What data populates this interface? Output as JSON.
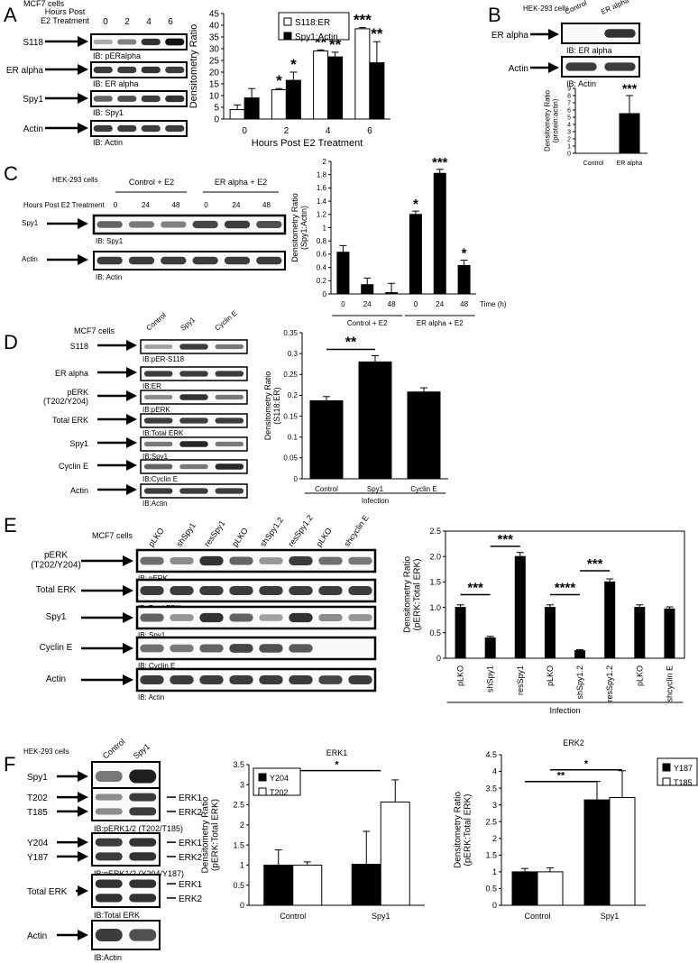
{
  "panels": {
    "A": {
      "letter": "A",
      "cells": "MCF7 cells",
      "header": [
        "Hours Post",
        "E2 Treatment"
      ],
      "lane_labels": [
        "0",
        "2",
        "4",
        "6"
      ],
      "blots": [
        {
          "label": "S118",
          "ib": "IB: pERalpha",
          "intensity": [
            0.25,
            0.45,
            0.85,
            1.0
          ]
        },
        {
          "label": "ER alpha",
          "ib": "IB: ER alpha",
          "intensity": [
            0.8,
            0.8,
            0.85,
            0.8
          ]
        },
        {
          "label": "Spy1",
          "ib": "IB: Spy1",
          "intensity": [
            0.6,
            0.7,
            0.8,
            0.85
          ]
        },
        {
          "label": "Actin",
          "ib": "IB: Actin",
          "intensity": [
            0.8,
            0.8,
            0.8,
            0.8
          ]
        }
      ]
    },
    "B": {
      "letter": "B",
      "cells": "HEK-293 cells",
      "lane_labels": [
        "Control",
        "ER alpha"
      ],
      "blots": [
        {
          "label": "ER alpha",
          "ib": "IB: ER alpha",
          "intensity": [
            0.0,
            0.85
          ]
        },
        {
          "label": "Actin",
          "ib": "IB: Actin",
          "intensity": [
            0.8,
            0.8
          ]
        }
      ]
    },
    "C": {
      "letter": "C",
      "cells": "HEK-293 cells",
      "groups": [
        "Control + E2",
        "ER alpha + E2"
      ],
      "header": "Hours Post E2 Treatment",
      "lane_labels": [
        "0",
        "24",
        "48",
        "0",
        "24",
        "48"
      ],
      "blots": [
        {
          "label": "Spy1",
          "ib": "IB: Spy1",
          "intensity": [
            0.6,
            0.5,
            0.45,
            0.75,
            0.8,
            0.7
          ]
        },
        {
          "label": "Actin",
          "ib": "IB: Actin",
          "intensity": [
            0.8,
            0.8,
            0.8,
            0.8,
            0.8,
            0.8
          ]
        }
      ]
    },
    "D": {
      "letter": "D",
      "cells": "MCF7 cells",
      "lane_labels": [
        "Control",
        "Spy1",
        "Cyclin E"
      ],
      "blots": [
        {
          "label": "S118",
          "ib": "IB:pER-S118",
          "intensity": [
            0.3,
            0.8,
            0.5
          ]
        },
        {
          "label": "ER alpha",
          "ib": "IB:ER",
          "intensity": [
            0.8,
            0.8,
            0.8
          ]
        },
        {
          "label": "pERK\n(T202/Y204)",
          "ib": "IB:pERK",
          "intensity": [
            0.4,
            0.85,
            0.5
          ]
        },
        {
          "label": "Total ERK",
          "ib": "IB:Total ERK",
          "intensity": [
            0.8,
            0.8,
            0.8
          ]
        },
        {
          "label": "Spy1",
          "ib": "IB:Spy1",
          "intensity": [
            0.5,
            0.9,
            0.5
          ]
        },
        {
          "label": "Cyclin E",
          "ib": "IB:Cyclin E",
          "intensity": [
            0.6,
            0.5,
            0.9
          ]
        },
        {
          "label": "Actin",
          "ib": "IB:Actin",
          "intensity": [
            0.8,
            0.8,
            0.8
          ]
        }
      ]
    },
    "E": {
      "letter": "E",
      "cells": "MCF7 cells",
      "lane_labels": [
        "pLKO",
        "shSpy1",
        "resSpy1",
        "pLKO",
        "shSpy1.2",
        "resSpy1.2",
        "pLKO",
        "shcyclin E"
      ],
      "blots": [
        {
          "label": "pERK\n(T202/Y204)",
          "ib": "IB: pERK",
          "intensity": [
            0.55,
            0.4,
            0.85,
            0.6,
            0.35,
            0.8,
            0.55,
            0.5
          ]
        },
        {
          "label": "Total ERK",
          "ib": "IB: Total ERK",
          "intensity": [
            0.8,
            0.8,
            0.8,
            0.8,
            0.8,
            0.8,
            0.8,
            0.8
          ]
        },
        {
          "label": "Spy1",
          "ib": "IB: Spy1",
          "intensity": [
            0.6,
            0.35,
            0.85,
            0.6,
            0.3,
            0.85,
            0.4,
            0.35
          ]
        },
        {
          "label": "Cyclin E",
          "ib": "IB: Cyclin E",
          "intensity": [
            0.55,
            0.5,
            0.6,
            0.75,
            0.7,
            0.65,
            0.0,
            0.0
          ]
        },
        {
          "label": "Actin",
          "ib": "IB: Actin",
          "intensity": [
            0.8,
            0.8,
            0.8,
            0.8,
            0.8,
            0.8,
            0.75,
            0.8
          ]
        }
      ]
    },
    "F": {
      "letter": "F",
      "cells": "HEK-293 cells",
      "lane_labels": [
        "Control",
        "Spy1"
      ],
      "blots": [
        {
          "label": "Spy1",
          "ib": "IB:Spy1",
          "intensity": [
            0.5,
            0.95
          ],
          "bands": []
        },
        {
          "label": "T202|T185",
          "ib": "IB:pERK1/2 (T202/T185)",
          "intensity": [
            0.4,
            0.8
          ],
          "bands": [
            "ERK1",
            "ERK2"
          ]
        },
        {
          "label": "Y204|Y187",
          "ib": "IB:pERK1/2 (Y204/Y187)",
          "intensity": [
            0.8,
            0.85
          ],
          "bands": [
            "ERK1",
            "ERK2"
          ]
        },
        {
          "label": "Total ERK",
          "ib": "IB:Total ERK",
          "intensity": [
            0.85,
            0.85
          ],
          "bands": [
            "ERK1",
            "ERK2"
          ]
        },
        {
          "label": "Actin",
          "ib": "IB:Actin",
          "intensity": [
            0.8,
            0.7
          ],
          "bands": []
        }
      ]
    }
  },
  "chart_data": [
    {
      "id": "A",
      "type": "bar",
      "xlabel": "Hours Post E2 Treatment",
      "ylabel": "Densitometry Ratio",
      "categories": [
        "0",
        "2",
        "4",
        "6"
      ],
      "ylim": [
        0,
        45
      ],
      "yticks": [
        0,
        5,
        10,
        15,
        20,
        25,
        30,
        35,
        40,
        45
      ],
      "legend": "top-left",
      "series": [
        {
          "name": "S118:ER",
          "fill": "#ffffff",
          "values": [
            4,
            12.5,
            29,
            38.5
          ],
          "err": [
            2,
            0.5,
            0.5,
            0.5
          ]
        },
        {
          "name": "Spy1:Actin",
          "fill": "#000000",
          "values": [
            9,
            16.5,
            26.5,
            24
          ],
          "err": [
            4,
            3.5,
            2,
            9
          ]
        }
      ],
      "annotations": [
        {
          "cat": 1,
          "series": 0,
          "text": "*"
        },
        {
          "cat": 1,
          "series": 1,
          "text": "*"
        },
        {
          "cat": 2,
          "series": 0,
          "text": "**"
        },
        {
          "cat": 2,
          "series": 1,
          "text": "**"
        },
        {
          "cat": 3,
          "series": 0,
          "text": "***"
        },
        {
          "cat": 3,
          "series": 1,
          "text": "**"
        }
      ]
    },
    {
      "id": "B",
      "type": "bar",
      "ylabel": "Densitometry Ratio\n(protein:actin)",
      "categories": [
        "Control",
        "ER alpha"
      ],
      "ylim": [
        0,
        9
      ],
      "yticks": [
        0,
        1,
        2,
        3,
        4,
        5,
        6,
        7,
        8,
        9
      ],
      "series": [
        {
          "name": "",
          "fill": "#000000",
          "values": [
            0,
            5.5
          ],
          "err": [
            0,
            2.5
          ]
        }
      ],
      "annotations": [
        {
          "cat": 1,
          "series": 0,
          "text": "***"
        }
      ]
    },
    {
      "id": "C",
      "type": "bar",
      "ylabel": "Densitometry Ratio\n(Spy1:Actin)",
      "xunit": "Time (h)",
      "categories": [
        "0",
        "24",
        "48",
        "0",
        "24",
        "48"
      ],
      "groups": [
        {
          "label": "Control + E2",
          "from": 0,
          "to": 2
        },
        {
          "label": "ER alpha + E2",
          "from": 3,
          "to": 5
        }
      ],
      "ylim": [
        0,
        2
      ],
      "yticks": [
        0,
        0.2,
        0.4,
        0.6,
        0.8,
        1,
        1.2,
        1.4,
        1.6,
        1.8,
        2
      ],
      "series": [
        {
          "name": "",
          "fill": "#000000",
          "values": [
            0.63,
            0.14,
            0.02,
            1.2,
            1.82,
            0.43
          ],
          "err": [
            0.1,
            0.1,
            0.14,
            0.05,
            0.06,
            0.08
          ]
        }
      ],
      "annotations": [
        {
          "cat": 3,
          "series": 0,
          "text": "*"
        },
        {
          "cat": 4,
          "series": 0,
          "text": "***"
        },
        {
          "cat": 5,
          "series": 0,
          "text": "*"
        }
      ]
    },
    {
      "id": "D",
      "type": "bar",
      "ylabel": "Densitometry Ratio\n(S118:ER)",
      "categories": [
        "Control",
        "Spy1",
        "Cyclin E"
      ],
      "groups": [
        {
          "label": "Infection",
          "from": 0,
          "to": 2
        }
      ],
      "ylim": [
        0,
        0.35
      ],
      "yticks": [
        0,
        0.05,
        0.1,
        0.15,
        0.2,
        0.25,
        0.3,
        0.35
      ],
      "series": [
        {
          "name": "",
          "fill": "#000000",
          "values": [
            0.187,
            0.28,
            0.208
          ],
          "err": [
            0.01,
            0.015,
            0.01
          ]
        }
      ],
      "brackets": [
        {
          "from": 0,
          "to": 1,
          "yval": 0.31,
          "text": "**"
        }
      ]
    },
    {
      "id": "E",
      "type": "bar",
      "ylabel": "Densitometry Ratio\n(pERK:Total ERK)",
      "categories": [
        "pLKO",
        "shSpy1",
        "resSpy1",
        "pLKO",
        "shSpy1.2",
        "resSpy1.2",
        "pLKO",
        "shcyclin E"
      ],
      "groups": [
        {
          "label": "Infection",
          "from": 0,
          "to": 7
        }
      ],
      "rotate_ticks": true,
      "ylim": [
        0,
        2.5
      ],
      "yticks": [
        0,
        0.5,
        1,
        1.5,
        2,
        2.5
      ],
      "ytick_labels": [
        "0",
        "0.5",
        "1.0",
        "1.5",
        "2.0",
        "2.5"
      ],
      "series": [
        {
          "name": "",
          "fill": "#000000",
          "values": [
            1.0,
            0.4,
            2.0,
            1.0,
            0.15,
            1.5,
            1.0,
            0.97
          ],
          "err": [
            0.05,
            0.03,
            0.08,
            0.05,
            0.02,
            0.06,
            0.05,
            0.04
          ]
        }
      ],
      "brackets": [
        {
          "from": 0,
          "to": 1,
          "yval": 1.25,
          "text": "***"
        },
        {
          "from": 1,
          "to": 2,
          "yval": 2.2,
          "text": "***"
        },
        {
          "from": 3,
          "to": 4,
          "yval": 1.25,
          "text": "****"
        },
        {
          "from": 4,
          "to": 5,
          "yval": 1.72,
          "text": "***"
        }
      ]
    },
    {
      "id": "F1",
      "type": "bar",
      "title": "ERK1",
      "ylabel": "Densitometry Ratio\n(pERK:Total ERK)",
      "categories": [
        "Control",
        "Spy1"
      ],
      "ylim": [
        0,
        3.5
      ],
      "yticks": [
        0,
        0.5,
        1,
        1.5,
        2,
        2.5,
        3,
        3.5
      ],
      "legend": "top-left",
      "series": [
        {
          "name": "Y204",
          "fill": "#000000",
          "values": [
            1.0,
            1.02
          ],
          "err": [
            0.38,
            0.82
          ]
        },
        {
          "name": "T202",
          "fill": "#ffffff",
          "values": [
            1.0,
            2.57
          ],
          "err": [
            0.08,
            0.55
          ]
        }
      ],
      "brackets": [
        {
          "from": 0,
          "to": 1,
          "yval": 3.35,
          "text": "*",
          "style": "line"
        }
      ]
    },
    {
      "id": "F2",
      "type": "bar",
      "title": "ERK2",
      "ylabel": "Densitometry Ratio\n(pERK:Total ERK)",
      "categories": [
        "Control",
        "Spy1"
      ],
      "ylim": [
        0,
        4.5
      ],
      "yticks": [
        0,
        0.5,
        1,
        1.5,
        2,
        2.5,
        3,
        3.5,
        4,
        4.5
      ],
      "legend": "top-right",
      "series": [
        {
          "name": "Y187",
          "fill": "#000000",
          "values": [
            1.0,
            3.15
          ],
          "err": [
            0.1,
            0.55
          ]
        },
        {
          "name": "T185",
          "fill": "#ffffff",
          "values": [
            1.0,
            3.22
          ],
          "err": [
            0.12,
            0.8
          ]
        }
      ],
      "brackets": [
        {
          "from": 0,
          "to": 1,
          "yval": 4.05,
          "text": "*",
          "style": "line",
          "series_from": 1,
          "series_to": 1
        },
        {
          "from": 0,
          "to": 1,
          "yval": 3.7,
          "text": "**",
          "style": "line",
          "series_from": 0,
          "series_to": 0
        }
      ]
    }
  ]
}
